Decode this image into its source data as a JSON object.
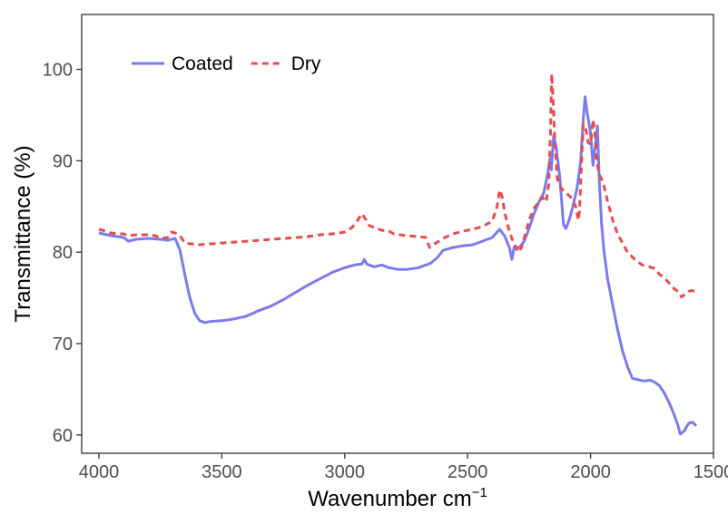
{
  "chart_data": {
    "type": "line",
    "title": "",
    "xlabel": "Wavenumber cm",
    "xlabel_superscript": "−1",
    "ylabel": "Transmittance (%)",
    "xlim": [
      4070,
      1500
    ],
    "ylim": [
      58,
      106
    ],
    "x_reversed": true,
    "x_ticks": [
      4000,
      3500,
      3000,
      2500,
      2000,
      1500
    ],
    "y_ticks": [
      60,
      70,
      80,
      90,
      100
    ],
    "grid": false,
    "legend_position": "top-left",
    "series": [
      {
        "name": "Coated",
        "color": "#7b7bf0",
        "line_style": "solid",
        "points": [
          [
            4000,
            82.1
          ],
          [
            3950,
            81.8
          ],
          [
            3900,
            81.6
          ],
          [
            3880,
            81.2
          ],
          [
            3850,
            81.4
          ],
          [
            3800,
            81.5
          ],
          [
            3750,
            81.4
          ],
          [
            3720,
            81.3
          ],
          [
            3690,
            81.5
          ],
          [
            3670,
            80.2
          ],
          [
            3650,
            77.5
          ],
          [
            3630,
            75.0
          ],
          [
            3610,
            73.3
          ],
          [
            3590,
            72.5
          ],
          [
            3570,
            72.3
          ],
          [
            3550,
            72.4
          ],
          [
            3500,
            72.5
          ],
          [
            3450,
            72.7
          ],
          [
            3400,
            73.0
          ],
          [
            3350,
            73.6
          ],
          [
            3300,
            74.1
          ],
          [
            3250,
            74.8
          ],
          [
            3200,
            75.6
          ],
          [
            3150,
            76.4
          ],
          [
            3100,
            77.1
          ],
          [
            3050,
            77.8
          ],
          [
            3000,
            78.3
          ],
          [
            2960,
            78.6
          ],
          [
            2930,
            78.7
          ],
          [
            2920,
            79.2
          ],
          [
            2910,
            78.7
          ],
          [
            2880,
            78.4
          ],
          [
            2850,
            78.6
          ],
          [
            2820,
            78.3
          ],
          [
            2780,
            78.1
          ],
          [
            2750,
            78.1
          ],
          [
            2700,
            78.3
          ],
          [
            2670,
            78.6
          ],
          [
            2650,
            78.8
          ],
          [
            2620,
            79.5
          ],
          [
            2600,
            80.2
          ],
          [
            2560,
            80.5
          ],
          [
            2520,
            80.7
          ],
          [
            2480,
            80.8
          ],
          [
            2440,
            81.2
          ],
          [
            2400,
            81.6
          ],
          [
            2370,
            82.5
          ],
          [
            2350,
            81.8
          ],
          [
            2330,
            80.5
          ],
          [
            2320,
            79.2
          ],
          [
            2310,
            80.6
          ],
          [
            2290,
            80.5
          ],
          [
            2270,
            81.2
          ],
          [
            2250,
            82.6
          ],
          [
            2230,
            84.2
          ],
          [
            2210,
            85.5
          ],
          [
            2190,
            86.5
          ],
          [
            2175,
            88.5
          ],
          [
            2165,
            90.2
          ],
          [
            2160,
            89.0
          ],
          [
            2150,
            92.8
          ],
          [
            2140,
            91.5
          ],
          [
            2125,
            88.2
          ],
          [
            2110,
            83.0
          ],
          [
            2100,
            82.6
          ],
          [
            2085,
            83.7
          ],
          [
            2070,
            85.2
          ],
          [
            2055,
            87.0
          ],
          [
            2040,
            90.0
          ],
          [
            2030,
            94.5
          ],
          [
            2022,
            97.0
          ],
          [
            2015,
            95.5
          ],
          [
            2000,
            93.0
          ],
          [
            1990,
            89.5
          ],
          [
            1980,
            91.8
          ],
          [
            1972,
            93.8
          ],
          [
            1965,
            88.0
          ],
          [
            1955,
            83.0
          ],
          [
            1945,
            80.0
          ],
          [
            1930,
            77.0
          ],
          [
            1910,
            74.2
          ],
          [
            1890,
            71.5
          ],
          [
            1870,
            69.2
          ],
          [
            1850,
            67.5
          ],
          [
            1830,
            66.2
          ],
          [
            1800,
            66.0
          ],
          [
            1780,
            65.9
          ],
          [
            1760,
            66.0
          ],
          [
            1740,
            65.8
          ],
          [
            1720,
            65.4
          ],
          [
            1700,
            64.6
          ],
          [
            1680,
            63.5
          ],
          [
            1660,
            62.2
          ],
          [
            1645,
            61.1
          ],
          [
            1635,
            60.1
          ],
          [
            1620,
            60.4
          ],
          [
            1600,
            61.3
          ],
          [
            1585,
            61.4
          ],
          [
            1570,
            61.0
          ]
        ]
      },
      {
        "name": "Dry",
        "color": "#e84c4c",
        "line_style": "dashed",
        "points": [
          [
            4000,
            82.5
          ],
          [
            3970,
            82.3
          ],
          [
            3950,
            82.1
          ],
          [
            3920,
            82.0
          ],
          [
            3900,
            82.0
          ],
          [
            3880,
            81.8
          ],
          [
            3850,
            81.9
          ],
          [
            3800,
            81.9
          ],
          [
            3770,
            81.8
          ],
          [
            3750,
            81.5
          ],
          [
            3720,
            81.6
          ],
          [
            3705,
            82.2
          ],
          [
            3690,
            82.1
          ],
          [
            3670,
            81.8
          ],
          [
            3650,
            81.0
          ],
          [
            3620,
            80.9
          ],
          [
            3600,
            80.8
          ],
          [
            3550,
            80.9
          ],
          [
            3500,
            81.0
          ],
          [
            3450,
            81.1
          ],
          [
            3400,
            81.2
          ],
          [
            3350,
            81.3
          ],
          [
            3300,
            81.4
          ],
          [
            3250,
            81.5
          ],
          [
            3200,
            81.6
          ],
          [
            3150,
            81.7
          ],
          [
            3100,
            81.9
          ],
          [
            3050,
            82.0
          ],
          [
            3000,
            82.2
          ],
          [
            2970,
            82.7
          ],
          [
            2950,
            83.4
          ],
          [
            2930,
            84.2
          ],
          [
            2915,
            83.6
          ],
          [
            2900,
            82.9
          ],
          [
            2870,
            82.6
          ],
          [
            2850,
            82.4
          ],
          [
            2820,
            82.3
          ],
          [
            2800,
            82.0
          ],
          [
            2750,
            81.8
          ],
          [
            2700,
            81.7
          ],
          [
            2670,
            81.6
          ],
          [
            2655,
            80.5
          ],
          [
            2640,
            80.8
          ],
          [
            2600,
            81.5
          ],
          [
            2560,
            82.0
          ],
          [
            2520,
            82.3
          ],
          [
            2480,
            82.5
          ],
          [
            2440,
            82.8
          ],
          [
            2400,
            83.4
          ],
          [
            2380,
            85.0
          ],
          [
            2370,
            86.8
          ],
          [
            2360,
            86.1
          ],
          [
            2350,
            84.5
          ],
          [
            2340,
            83.2
          ],
          [
            2320,
            81.5
          ],
          [
            2310,
            80.9
          ],
          [
            2300,
            80.3
          ],
          [
            2290,
            80.0
          ],
          [
            2280,
            80.6
          ],
          [
            2265,
            82.0
          ],
          [
            2250,
            83.5
          ],
          [
            2230,
            84.8
          ],
          [
            2210,
            85.5
          ],
          [
            2195,
            86.0
          ],
          [
            2180,
            85.5
          ],
          [
            2170,
            87.5
          ],
          [
            2163,
            93.0
          ],
          [
            2158,
            99.5
          ],
          [
            2152,
            96.5
          ],
          [
            2145,
            92.0
          ],
          [
            2135,
            88.0
          ],
          [
            2120,
            87.0
          ],
          [
            2100,
            86.5
          ],
          [
            2080,
            86.0
          ],
          [
            2060,
            85.0
          ],
          [
            2050,
            83.5
          ],
          [
            2045,
            84.5
          ],
          [
            2038,
            89.0
          ],
          [
            2030,
            94.0
          ],
          [
            2020,
            93.5
          ],
          [
            2010,
            92.0
          ],
          [
            2000,
            91.8
          ],
          [
            1990,
            94.5
          ],
          [
            1982,
            93.0
          ],
          [
            1975,
            90.0
          ],
          [
            1965,
            88.5
          ],
          [
            1955,
            88.0
          ],
          [
            1945,
            87.2
          ],
          [
            1930,
            85.5
          ],
          [
            1910,
            83.5
          ],
          [
            1890,
            82.0
          ],
          [
            1870,
            81.0
          ],
          [
            1850,
            80.0
          ],
          [
            1820,
            79.2
          ],
          [
            1790,
            78.6
          ],
          [
            1760,
            78.4
          ],
          [
            1740,
            78.2
          ],
          [
            1720,
            77.6
          ],
          [
            1700,
            77.2
          ],
          [
            1680,
            76.6
          ],
          [
            1660,
            76.0
          ],
          [
            1640,
            75.6
          ],
          [
            1630,
            75.1
          ],
          [
            1615,
            75.4
          ],
          [
            1600,
            75.7
          ],
          [
            1590,
            75.8
          ],
          [
            1575,
            75.7
          ]
        ]
      }
    ]
  }
}
